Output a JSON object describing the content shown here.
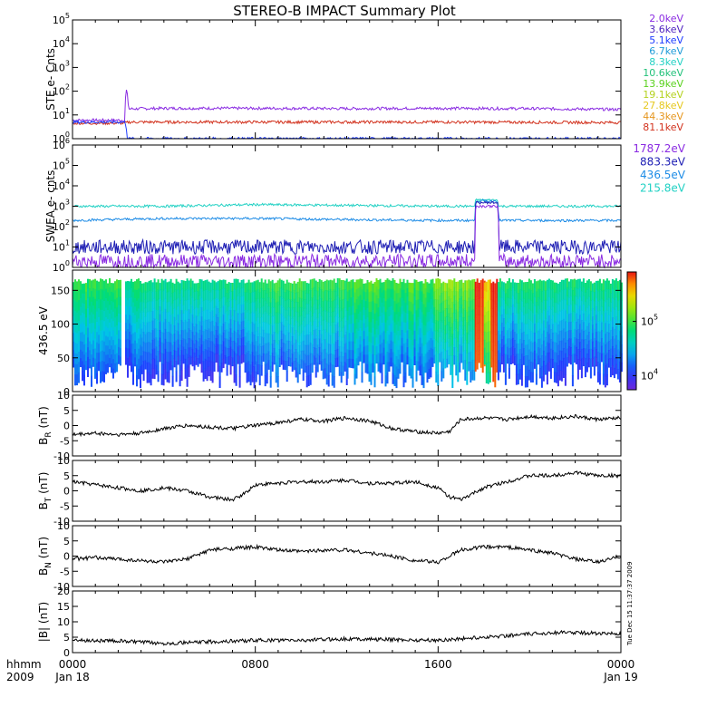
{
  "title": "STEREO-B IMPACT Summary Plot",
  "time_axis": {
    "row1_label": "hhmm",
    "row2_label": "2009",
    "ticks": [
      {
        "hour": 0,
        "hhmm": "0000",
        "date": "Jan 18"
      },
      {
        "hour": 8,
        "hhmm": "0800",
        "date": ""
      },
      {
        "hour": 16,
        "hhmm": "1600",
        "date": ""
      },
      {
        "hour": 24,
        "hhmm": "0000",
        "date": "Jan 19"
      }
    ],
    "range_hours": [
      0,
      24
    ]
  },
  "timestamp": "Tue Dec 15 11:37:37 2009",
  "ste_legend": [
    {
      "label": "2.0keV",
      "color": "#8a2be2"
    },
    {
      "label": "3.6keV",
      "color": "#4b1fbf"
    },
    {
      "label": "5.1keV",
      "color": "#1e3cff"
    },
    {
      "label": "6.7keV",
      "color": "#1e9bd8"
    },
    {
      "label": "8.3keV",
      "color": "#22d1c4"
    },
    {
      "label": "10.6keV",
      "color": "#22c27a"
    },
    {
      "label": "13.9keV",
      "color": "#5ad21e"
    },
    {
      "label": "19.1keV",
      "color": "#b4d21e"
    },
    {
      "label": "27.8keV",
      "color": "#e6c81e"
    },
    {
      "label": "44.3keV",
      "color": "#e6961e"
    },
    {
      "label": "81.1keV",
      "color": "#d2321e"
    }
  ],
  "swea_legend": [
    {
      "label": "1787.2eV",
      "color": "#8a2be2"
    },
    {
      "label": "883.3eV",
      "color": "#1e1eb4"
    },
    {
      "label": "436.5eV",
      "color": "#1e8ce6"
    },
    {
      "label": "215.8eV",
      "color": "#22d1c4"
    }
  ],
  "colorbar": {
    "tick_labels": [
      {
        "base": "10",
        "exp": "5",
        "frac": 0.42
      },
      {
        "base": "10",
        "exp": "4",
        "frac": 0.88
      }
    ]
  },
  "chart_data": [
    {
      "type": "line",
      "panel": "ste",
      "ylabel": "STE e- Cnts",
      "yscale": "log",
      "ylim": [
        1,
        100000
      ],
      "yticks": [
        {
          "base": "10",
          "exp": "0"
        },
        {
          "base": "10",
          "exp": "1"
        },
        {
          "base": "10",
          "exp": "2"
        },
        {
          "base": "10",
          "exp": "3"
        },
        {
          "base": "10",
          "exp": "4"
        },
        {
          "base": "10",
          "exp": "5"
        }
      ],
      "series": [
        {
          "name": "2.0keV",
          "color": "#8a2be2",
          "points": [
            [
              0,
              6
            ],
            [
              2.3,
              6
            ],
            [
              2.35,
              120
            ],
            [
              2.45,
              18
            ],
            [
              4,
              19
            ],
            [
              8,
              19
            ],
            [
              12,
              18.5
            ],
            [
              16,
              19
            ],
            [
              20,
              18.5
            ],
            [
              24,
              17
            ]
          ]
        },
        {
          "name": "81.1keV",
          "color": "#d2321e",
          "points": [
            [
              0,
              4.5
            ],
            [
              2.3,
              4.5
            ],
            [
              2.45,
              5
            ],
            [
              8,
              5
            ],
            [
              16,
              5
            ],
            [
              24,
              4.8
            ]
          ]
        },
        {
          "name": "5.1keV",
          "color": "#1e3cff",
          "points": [
            [
              0,
              5
            ],
            [
              2.3,
              5
            ],
            [
              2.4,
              1
            ],
            [
              24,
              1
            ]
          ]
        }
      ]
    },
    {
      "type": "line",
      "panel": "swea",
      "ylabel": "SWEA e- cnts",
      "yscale": "log",
      "ylim": [
        1,
        1000000
      ],
      "yticks": [
        {
          "base": "10",
          "exp": "0"
        },
        {
          "base": "10",
          "exp": "1"
        },
        {
          "base": "10",
          "exp": "2"
        },
        {
          "base": "10",
          "exp": "3"
        },
        {
          "base": "10",
          "exp": "4"
        },
        {
          "base": "10",
          "exp": "5"
        },
        {
          "base": "10",
          "exp": "6"
        }
      ],
      "series": [
        {
          "name": "215.8eV",
          "color": "#22d1c4",
          "points": [
            [
              0,
              1000
            ],
            [
              4,
              1000
            ],
            [
              8,
              1200
            ],
            [
              12,
              1100
            ],
            [
              16,
              1000
            ],
            [
              17.6,
              1000
            ],
            [
              17.65,
              2000
            ],
            [
              18.6,
              2000
            ],
            [
              18.65,
              1000
            ],
            [
              24,
              1000
            ]
          ]
        },
        {
          "name": "436.5eV",
          "color": "#1e8ce6",
          "points": [
            [
              0,
              200
            ],
            [
              4,
              250
            ],
            [
              8,
              250
            ],
            [
              12,
              220
            ],
            [
              16,
              200
            ],
            [
              17.6,
              200
            ],
            [
              17.65,
              1800
            ],
            [
              18.6,
              1800
            ],
            [
              18.65,
              200
            ],
            [
              24,
              200
            ]
          ]
        },
        {
          "name": "883.3eV",
          "color": "#1e1eb4",
          "points": [
            [
              0,
              10
            ],
            [
              8,
              10
            ],
            [
              16,
              10
            ],
            [
              17.6,
              10
            ],
            [
              17.65,
              1500
            ],
            [
              18.6,
              1500
            ],
            [
              18.65,
              10
            ],
            [
              24,
              10
            ]
          ]
        },
        {
          "name": "1787.2eV",
          "color": "#8a2be2",
          "points": [
            [
              0,
              2
            ],
            [
              8,
              2
            ],
            [
              16,
              2
            ],
            [
              17.6,
              2
            ],
            [
              17.65,
              1000
            ],
            [
              18.6,
              1000
            ],
            [
              18.65,
              2
            ],
            [
              24,
              2
            ]
          ]
        }
      ]
    },
    {
      "type": "heatmap",
      "panel": "spectrogram",
      "ylabel": "436.5 eV",
      "ylim": [
        0,
        180
      ],
      "yticks": [
        0,
        50,
        100,
        150
      ],
      "bands": [
        {
          "from": 0.0,
          "to": 2.1,
          "level": 0.55
        },
        {
          "from": 2.1,
          "to": 2.3,
          "level": 0.0
        },
        {
          "from": 2.3,
          "to": 3.0,
          "level": 0.5
        },
        {
          "from": 3.0,
          "to": 8.0,
          "level": 0.48
        },
        {
          "from": 8.0,
          "to": 12.0,
          "level": 0.55
        },
        {
          "from": 12.0,
          "to": 15.8,
          "level": 0.58
        },
        {
          "from": 15.8,
          "to": 17.6,
          "level": 0.65
        },
        {
          "from": 17.6,
          "to": 18.0,
          "level": 1.0
        },
        {
          "from": 18.0,
          "to": 18.3,
          "level": 0.82
        },
        {
          "from": 18.3,
          "to": 18.6,
          "level": 1.0
        },
        {
          "from": 18.6,
          "to": 24.0,
          "level": 0.5
        }
      ]
    },
    {
      "type": "line",
      "panel": "br",
      "ylabel": "BR (nT)",
      "ylabel_main": "B",
      "ylabel_sub": "R",
      "ylabel_unit": " (nT)",
      "ylim": [
        -10,
        10
      ],
      "yticks": [
        -10,
        -5,
        0,
        5,
        10
      ],
      "series": [
        {
          "name": "",
          "color": "#000000",
          "points": [
            [
              0,
              -3
            ],
            [
              1,
              -2.5
            ],
            [
              2,
              -3
            ],
            [
              3,
              -2.5
            ],
            [
              4,
              -1
            ],
            [
              5,
              0
            ],
            [
              6,
              -0.5
            ],
            [
              7,
              -1
            ],
            [
              8,
              0
            ],
            [
              9,
              1
            ],
            [
              10,
              2
            ],
            [
              11,
              1.5
            ],
            [
              12,
              2.5
            ],
            [
              13,
              1.5
            ],
            [
              14,
              -1
            ],
            [
              15,
              -2
            ],
            [
              16,
              -2.5
            ],
            [
              16.5,
              -2
            ],
            [
              17,
              2
            ],
            [
              18,
              2.5
            ],
            [
              19,
              2
            ],
            [
              20,
              3
            ],
            [
              21,
              2.5
            ],
            [
              22,
              3
            ],
            [
              23,
              2
            ],
            [
              24,
              2.5
            ]
          ]
        }
      ]
    },
    {
      "type": "line",
      "panel": "bt",
      "ylabel": "BT (nT)",
      "ylabel_main": "B",
      "ylabel_sub": "T",
      "ylabel_unit": " (nT)",
      "ylim": [
        -10,
        10
      ],
      "yticks": [
        -10,
        -5,
        0,
        5,
        10
      ],
      "series": [
        {
          "name": "",
          "color": "#000000",
          "points": [
            [
              0,
              3
            ],
            [
              1,
              2
            ],
            [
              2,
              1
            ],
            [
              3,
              0
            ],
            [
              4,
              1
            ],
            [
              5,
              0
            ],
            [
              6,
              -2
            ],
            [
              7,
              -3
            ],
            [
              7.5,
              -1
            ],
            [
              8,
              2
            ],
            [
              9,
              2.5
            ],
            [
              10,
              3
            ],
            [
              11,
              3
            ],
            [
              12,
              3.5
            ],
            [
              13,
              2.5
            ],
            [
              14,
              2.5
            ],
            [
              15,
              3
            ],
            [
              16,
              1
            ],
            [
              16.5,
              -2
            ],
            [
              17,
              -3
            ],
            [
              17.5,
              -1
            ],
            [
              18,
              1
            ],
            [
              19,
              3
            ],
            [
              20,
              5
            ],
            [
              21,
              5
            ],
            [
              22,
              6
            ],
            [
              23,
              5
            ],
            [
              24,
              5
            ]
          ]
        }
      ]
    },
    {
      "type": "line",
      "panel": "bn",
      "ylabel": "BN (nT)",
      "ylabel_main": "B",
      "ylabel_sub": "N",
      "ylabel_unit": " (nT)",
      "ylim": [
        -10,
        10
      ],
      "yticks": [
        -10,
        -5,
        0,
        5,
        10
      ],
      "series": [
        {
          "name": "",
          "color": "#000000",
          "points": [
            [
              0,
              -1
            ],
            [
              1,
              -0.5
            ],
            [
              2,
              -1
            ],
            [
              3,
              -1.5
            ],
            [
              4,
              -2
            ],
            [
              5,
              -1
            ],
            [
              6,
              2
            ],
            [
              7,
              2.5
            ],
            [
              8,
              3
            ],
            [
              9,
              2
            ],
            [
              10,
              1.5
            ],
            [
              11,
              2
            ],
            [
              12,
              2
            ],
            [
              13,
              1
            ],
            [
              14,
              0
            ],
            [
              15,
              -1.5
            ],
            [
              16,
              -2
            ],
            [
              16.5,
              0
            ],
            [
              17,
              2
            ],
            [
              18,
              3
            ],
            [
              19,
              3
            ],
            [
              20,
              2
            ],
            [
              21,
              1
            ],
            [
              22,
              -1
            ],
            [
              23,
              -2
            ],
            [
              24,
              0
            ]
          ]
        }
      ]
    },
    {
      "type": "line",
      "panel": "bmag",
      "ylabel": "|B| (nT)",
      "ylim": [
        0,
        20
      ],
      "yticks": [
        0,
        5,
        10,
        15,
        20
      ],
      "series": [
        {
          "name": "",
          "color": "#000000",
          "points": [
            [
              0,
              4
            ],
            [
              2,
              3.8
            ],
            [
              4,
              3
            ],
            [
              6,
              3.5
            ],
            [
              8,
              4
            ],
            [
              10,
              4
            ],
            [
              12,
              4.5
            ],
            [
              14,
              4.2
            ],
            [
              16,
              4
            ],
            [
              18,
              5
            ],
            [
              20,
              6
            ],
            [
              21,
              6.5
            ],
            [
              22,
              6.5
            ],
            [
              24,
              6
            ]
          ]
        }
      ]
    }
  ]
}
